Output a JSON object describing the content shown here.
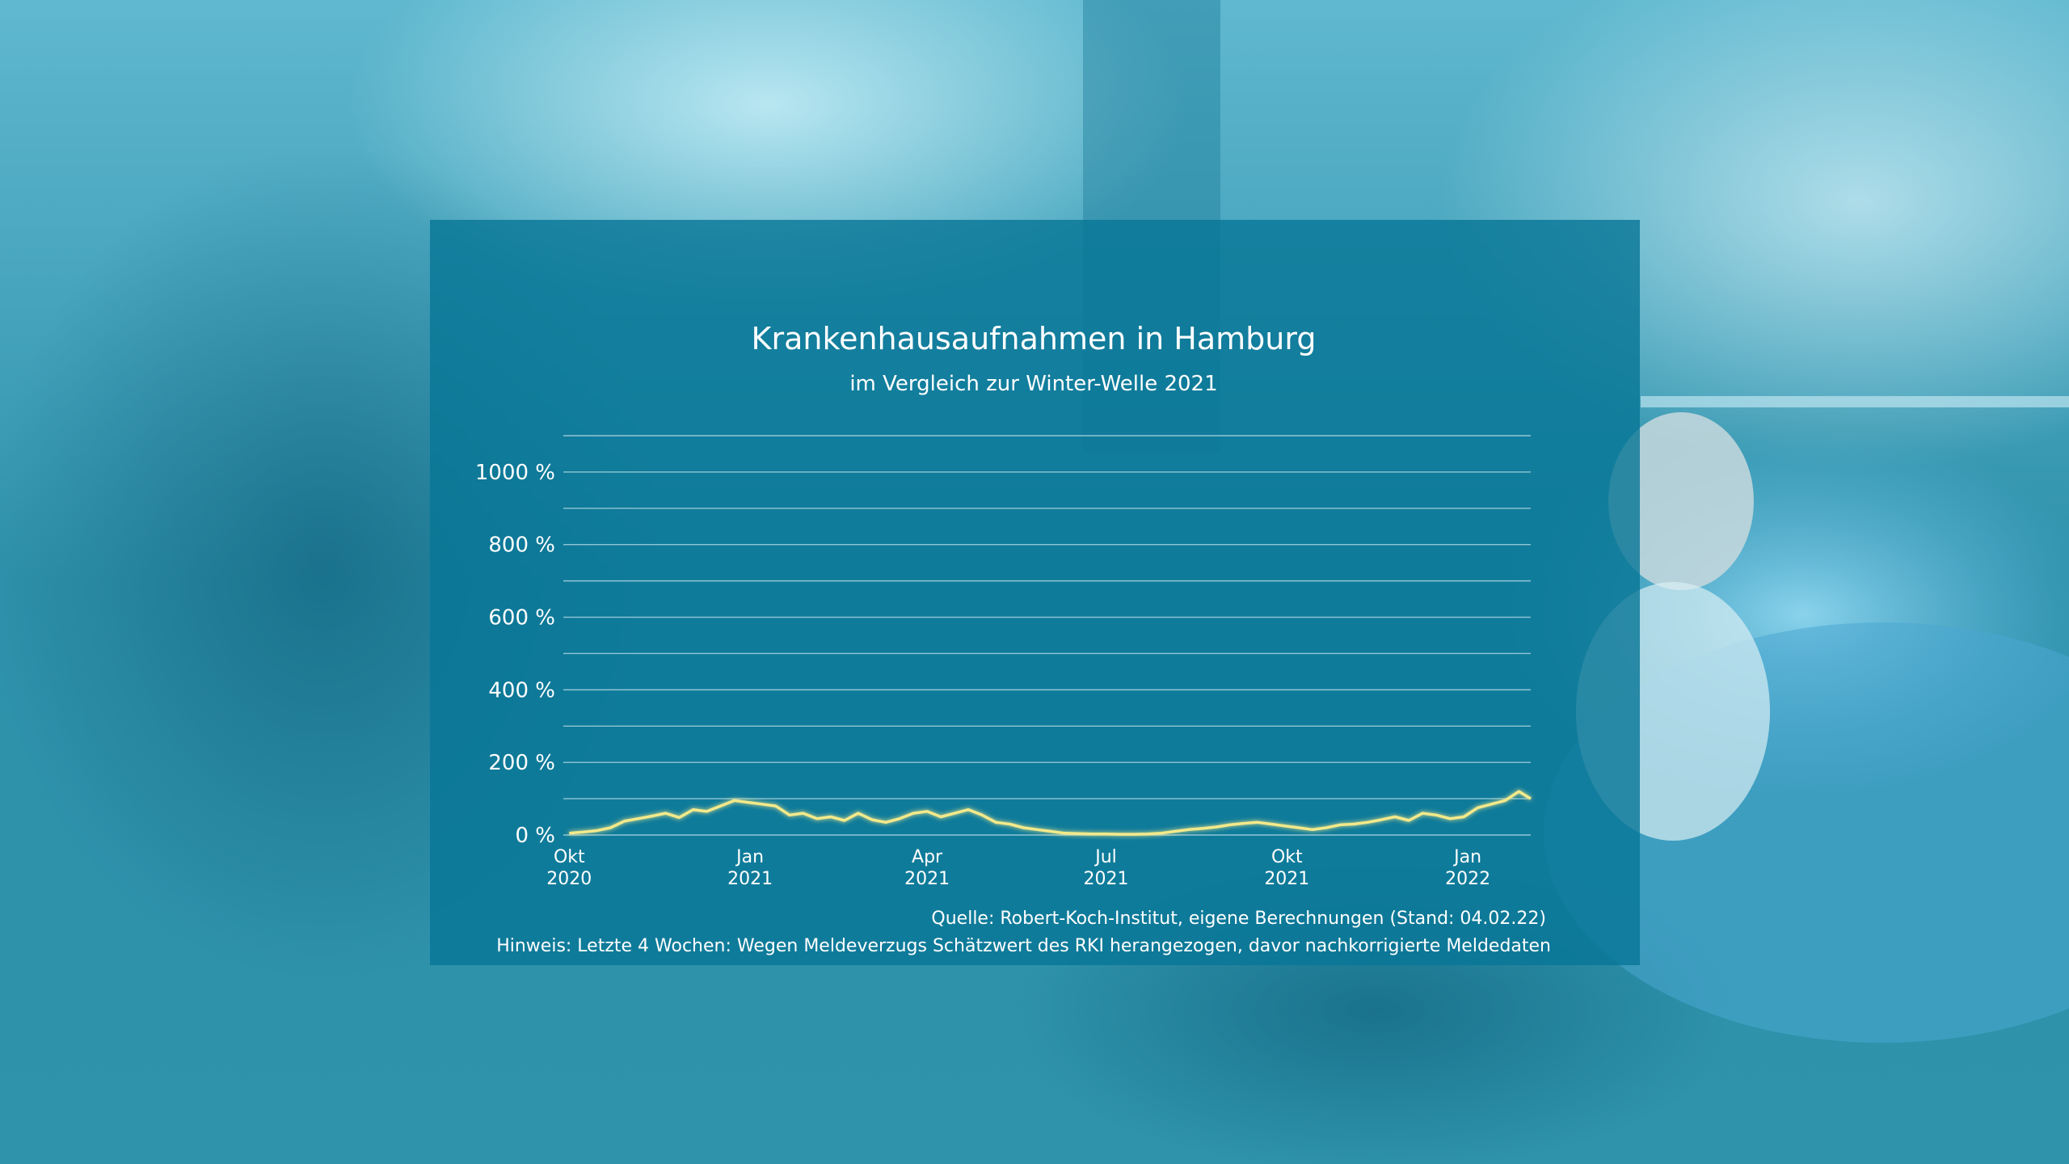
{
  "colors": {
    "background": "#2a8aa3",
    "panel": "#087696",
    "line": "#f3e98a",
    "line_glow": "#fff7b0",
    "grid": "#a9d3de",
    "reference": "#ffffff",
    "text": "#ffffff"
  },
  "chart_data": {
    "type": "line",
    "title": "Krankenhausaufnahmen in Hamburg",
    "subtitle": "im Vergleich zur Winter-Welle 2021",
    "xlabel": "",
    "ylabel": "",
    "ylim": [
      0,
      1100
    ],
    "yticks": [
      0,
      200,
      400,
      600,
      800,
      1000
    ],
    "ytick_labels": [
      "0 %",
      "200 %",
      "400 %",
      "600 %",
      "800 %",
      "1000 %"
    ],
    "gridlines": [
      0,
      100,
      200,
      300,
      400,
      500,
      600,
      700,
      800,
      900,
      1000,
      1100
    ],
    "xlim": [
      "2020-09-28",
      "2022-02-02"
    ],
    "xticks": [
      {
        "date": "2020-10-01",
        "month": "Okt",
        "year": "2020"
      },
      {
        "date": "2021-01-01",
        "month": "Jan",
        "year": "2021"
      },
      {
        "date": "2021-04-01",
        "month": "Apr",
        "year": "2021"
      },
      {
        "date": "2021-07-01",
        "month": "Jul",
        "year": "2021"
      },
      {
        "date": "2021-10-01",
        "month": "Okt",
        "year": "2021"
      },
      {
        "date": "2022-01-01",
        "month": "Jan",
        "year": "2022"
      }
    ],
    "reference_line": 100,
    "grid": true,
    "legend": "none",
    "series": [
      {
        "x": [
          "2020-10-01",
          "2020-10-08",
          "2020-10-15",
          "2020-10-22",
          "2020-10-29",
          "2020-11-05",
          "2020-11-12",
          "2020-11-19",
          "2020-11-26",
          "2020-12-03",
          "2020-12-10",
          "2020-12-17",
          "2020-12-24",
          "2020-12-31",
          "2021-01-07",
          "2021-01-14",
          "2021-01-21",
          "2021-01-28",
          "2021-02-04",
          "2021-02-11",
          "2021-02-18",
          "2021-02-25",
          "2021-03-04",
          "2021-03-11",
          "2021-03-18",
          "2021-03-25",
          "2021-04-01",
          "2021-04-08",
          "2021-04-15",
          "2021-04-22",
          "2021-04-29",
          "2021-05-06",
          "2021-05-13",
          "2021-05-20",
          "2021-05-27",
          "2021-06-03",
          "2021-06-10",
          "2021-06-17",
          "2021-06-24",
          "2021-07-01",
          "2021-07-08",
          "2021-07-15",
          "2021-07-22",
          "2021-07-29",
          "2021-08-05",
          "2021-08-12",
          "2021-08-19",
          "2021-08-26",
          "2021-09-02",
          "2021-09-09",
          "2021-09-16",
          "2021-09-23",
          "2021-09-30",
          "2021-10-07",
          "2021-10-14",
          "2021-10-21",
          "2021-10-28",
          "2021-11-04",
          "2021-11-11",
          "2021-11-18",
          "2021-11-25",
          "2021-12-02",
          "2021-12-09",
          "2021-12-16",
          "2021-12-23",
          "2021-12-30",
          "2022-01-06",
          "2022-01-13",
          "2022-01-20",
          "2022-01-27",
          "2022-02-02"
        ],
        "values": [
          5,
          8,
          12,
          20,
          38,
          45,
          52,
          60,
          48,
          70,
          65,
          80,
          95,
          90,
          85,
          80,
          55,
          60,
          45,
          50,
          40,
          60,
          42,
          35,
          45,
          60,
          65,
          50,
          60,
          70,
          55,
          35,
          30,
          20,
          15,
          10,
          5,
          4,
          3,
          3,
          2,
          2,
          3,
          5,
          10,
          15,
          18,
          22,
          28,
          32,
          35,
          30,
          25,
          20,
          15,
          20,
          28,
          30,
          35,
          42,
          50,
          40,
          60,
          55,
          45,
          50,
          75,
          85,
          95,
          120,
          100
        ]
      }
    ]
  },
  "footer": {
    "source": "Quelle: Robert-Koch-Institut, eigene Berechnungen (Stand: 04.02.22)",
    "note": "Hinweis: Letzte 4 Wochen: Wegen Meldeverzugs Schätzwert des RKI herangezogen, davor nachkorrigierte Meldedaten"
  }
}
